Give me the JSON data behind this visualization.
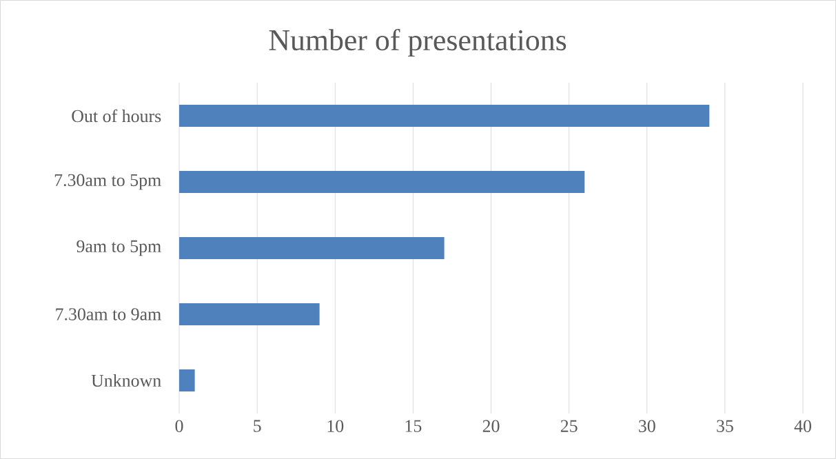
{
  "chart_data": {
    "type": "bar",
    "orientation": "horizontal",
    "title": "Number of presentations",
    "categories": [
      "Out of hours",
      "7.30am to 5pm",
      "9am to 5pm",
      "7.30am to 9am",
      "Unknown"
    ],
    "values": [
      34,
      26,
      17,
      9,
      1
    ],
    "color": "#4f81bd",
    "xlim": [
      0,
      40
    ],
    "xticks": [
      0,
      5,
      10,
      15,
      20,
      25,
      30,
      35,
      40
    ],
    "grid": "x"
  }
}
